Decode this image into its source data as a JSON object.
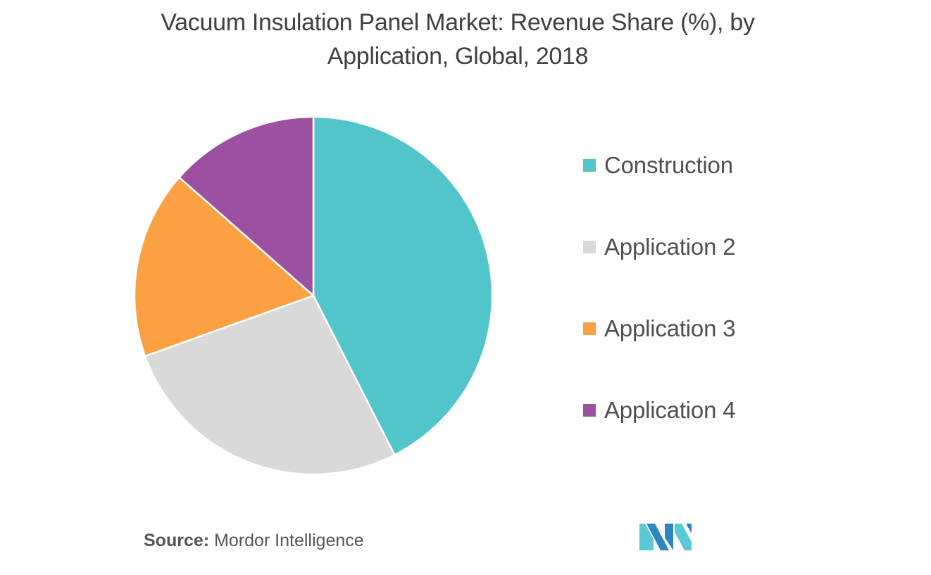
{
  "chart_title": {
    "line1": "Vacuum Insulation Panel Market: Revenue Share (%), by",
    "line2": "Application, Global, 2018"
  },
  "chart_data": {
    "type": "pie",
    "title": "Vacuum Insulation Panel Market: Revenue Share (%), by Application, Global, 2018",
    "categories": [
      "Construction",
      "Application 2",
      "Application 3",
      "Application 4"
    ],
    "values": [
      42.5,
      27.0,
      17.0,
      13.5
    ],
    "colors": [
      "#52c5cb",
      "#d9d9d9",
      "#fca044",
      "#9b51a0"
    ],
    "start_angle_deg": 0,
    "direction": "clockwise",
    "legend_position": "right"
  },
  "source": {
    "label": "Source:",
    "text": "Mordor Intelligence"
  },
  "logo": {
    "name": "mordor-intelligence-logo",
    "colors": [
      "#2e86c1",
      "#5bc8d8"
    ]
  }
}
